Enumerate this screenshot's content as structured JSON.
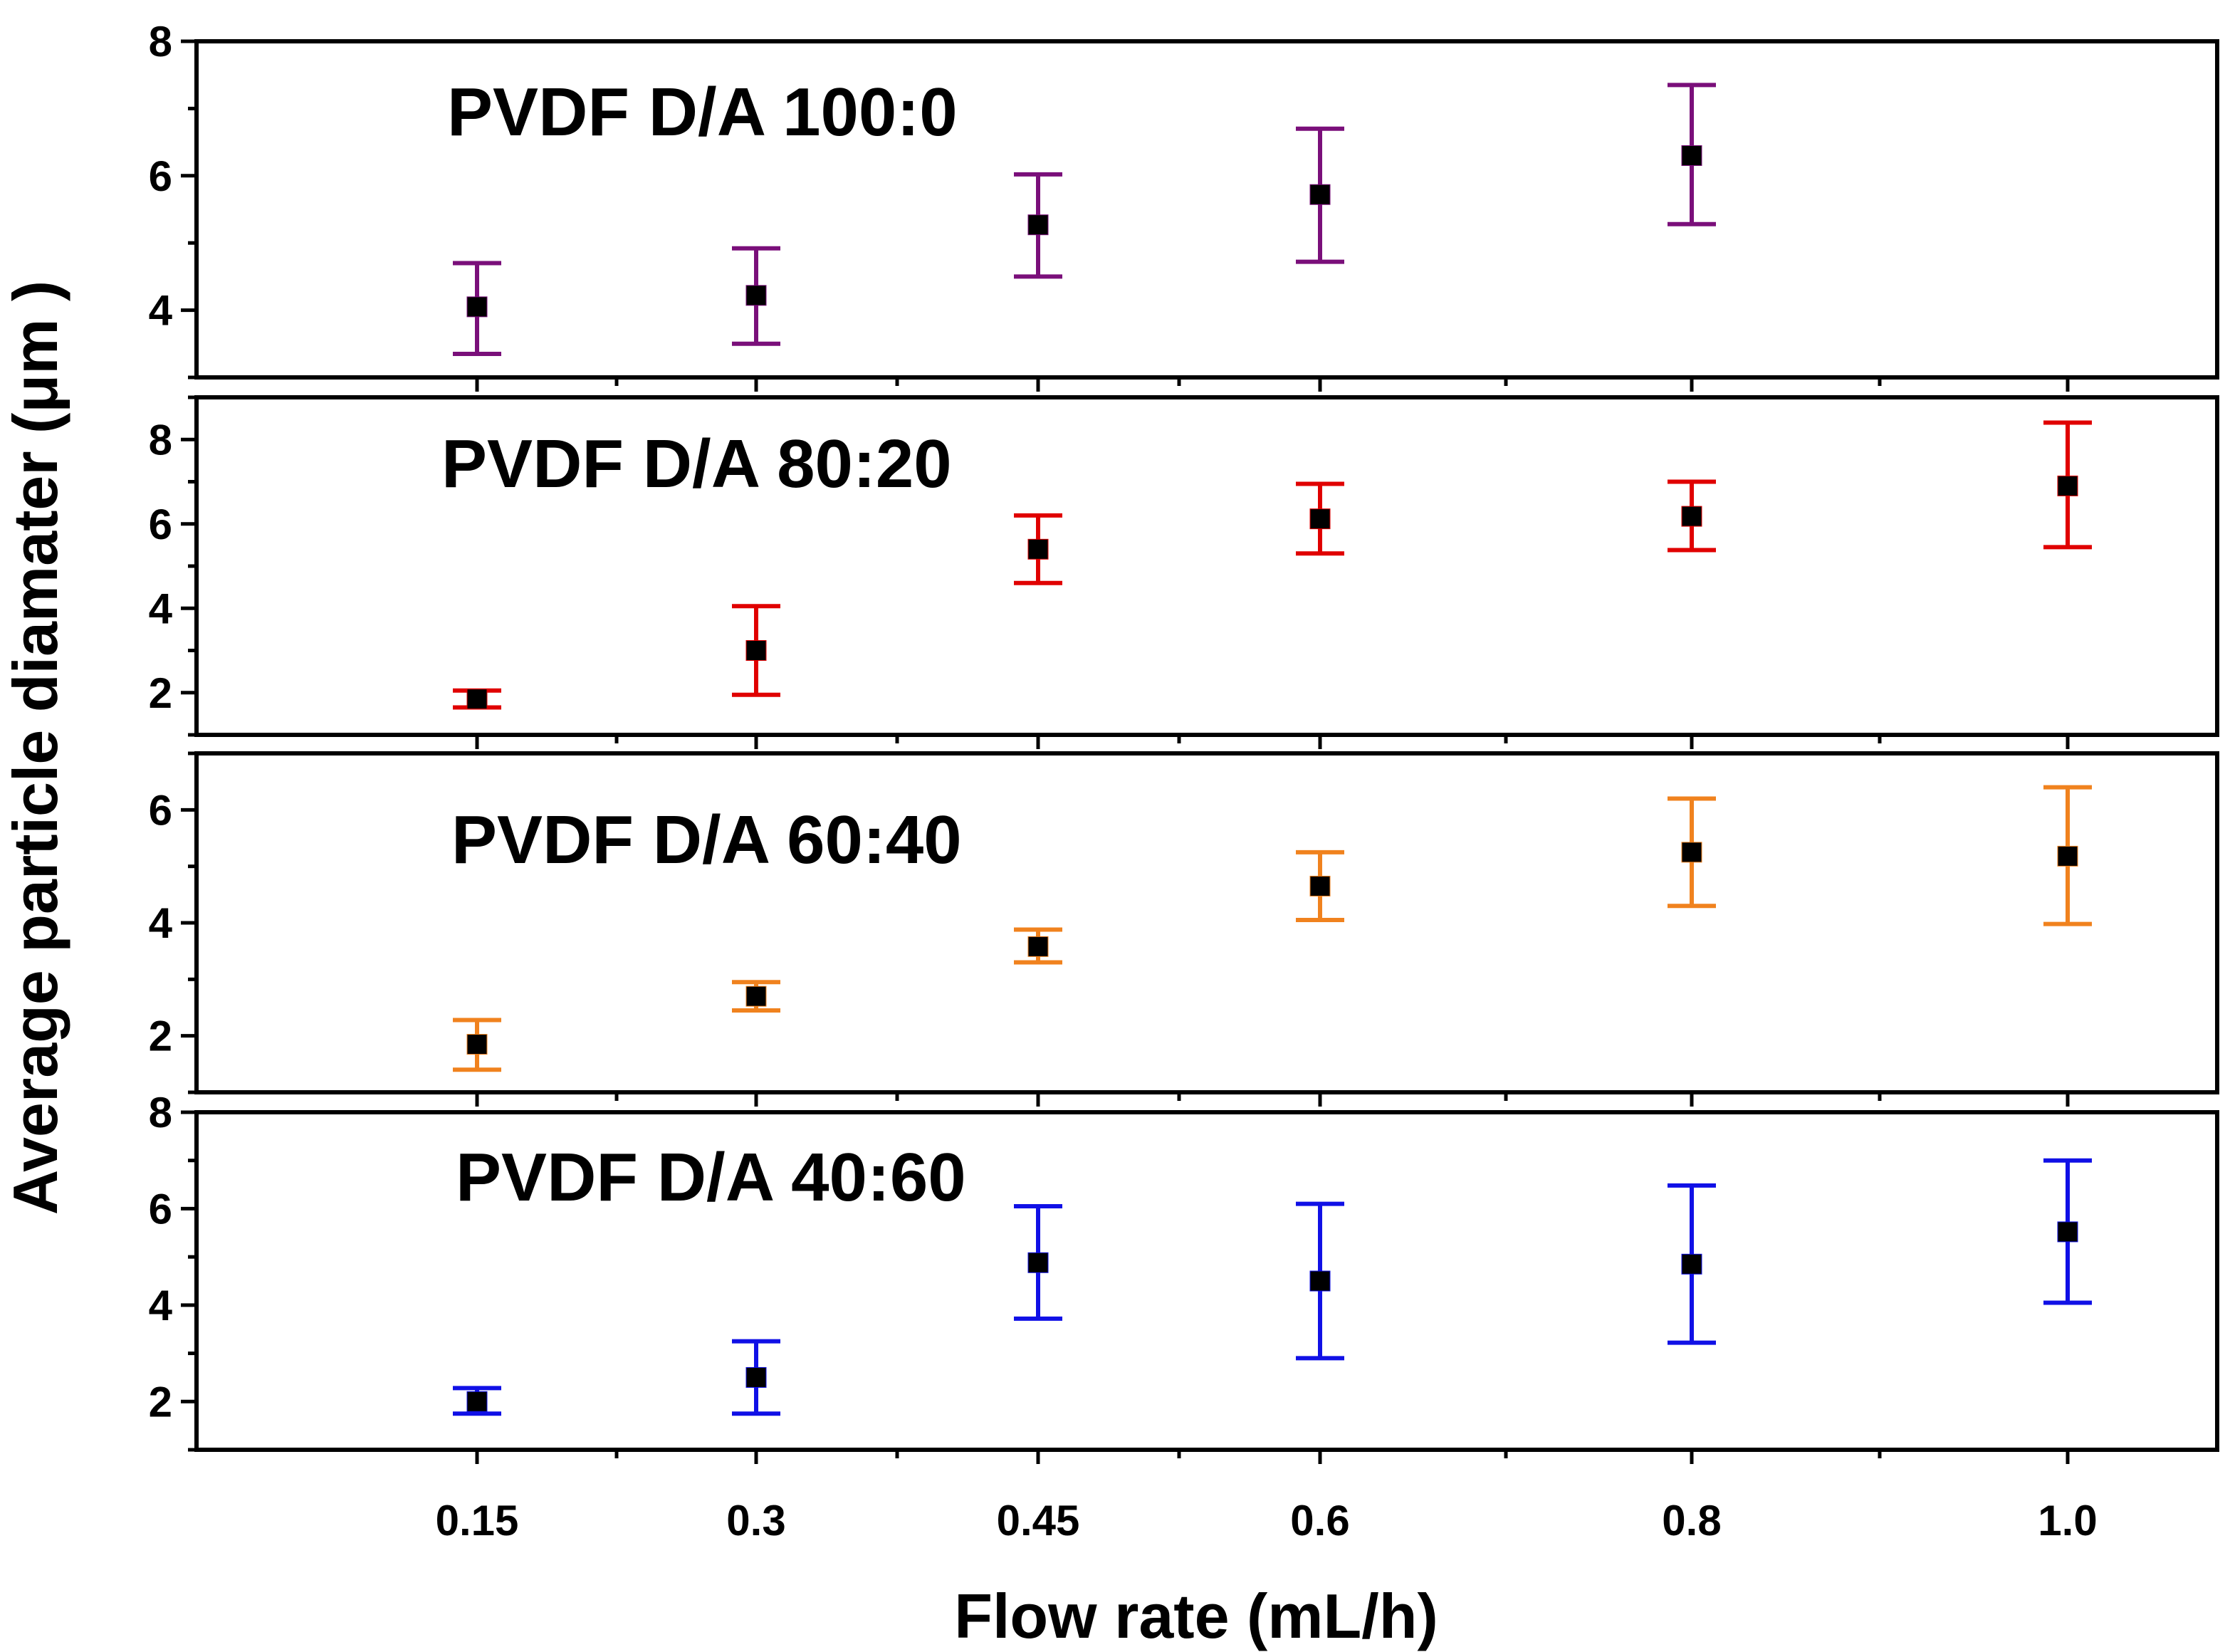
{
  "chart_data": {
    "type": "scatter",
    "xlabel": "Flow rate (mL/h)",
    "ylabel": "Average particle diamater (μm )",
    "x_categories": [
      "0.15",
      "0.3",
      "0.45",
      "0.6",
      "0.8",
      "1.0"
    ],
    "panels": [
      {
        "title": "PVDF D/A 100:0",
        "color": "#7a0f7a",
        "ylim": [
          3.0,
          8.0
        ],
        "yticks": [
          4,
          6,
          8
        ],
        "points": [
          {
            "x": "0.15",
            "y": 4.05,
            "err_low": 3.35,
            "err_high": 4.7
          },
          {
            "x": "0.3",
            "y": 4.22,
            "err_low": 3.5,
            "err_high": 4.92
          },
          {
            "x": "0.45",
            "y": 5.27,
            "err_low": 4.5,
            "err_high": 6.02
          },
          {
            "x": "0.6",
            "y": 5.72,
            "err_low": 4.72,
            "err_high": 6.7
          },
          {
            "x": "0.8",
            "y": 6.3,
            "err_low": 5.28,
            "err_high": 7.35
          }
        ]
      },
      {
        "title": "PVDF D/A 80:20",
        "color": "#e00000",
        "ylim": [
          1.0,
          9.0
        ],
        "yticks": [
          2,
          4,
          6,
          8
        ],
        "points": [
          {
            "x": "0.15",
            "y": 1.85,
            "err_low": 1.65,
            "err_high": 2.05
          },
          {
            "x": "0.3",
            "y": 3.0,
            "err_low": 1.95,
            "err_high": 4.05
          },
          {
            "x": "0.45",
            "y": 5.4,
            "err_low": 4.6,
            "err_high": 6.2
          },
          {
            "x": "0.6",
            "y": 6.12,
            "err_low": 5.3,
            "err_high": 6.95
          },
          {
            "x": "0.8",
            "y": 6.18,
            "err_low": 5.38,
            "err_high": 7.0
          },
          {
            "x": "1.0",
            "y": 6.9,
            "err_low": 5.45,
            "err_high": 8.4
          }
        ]
      },
      {
        "title": "PVDF D/A 60:40",
        "color": "#f0821e",
        "ylim": [
          1.0,
          7.0
        ],
        "yticks": [
          2,
          4,
          6
        ],
        "points": [
          {
            "x": "0.15",
            "y": 1.85,
            "err_low": 1.4,
            "err_high": 2.28
          },
          {
            "x": "0.3",
            "y": 2.7,
            "err_low": 2.45,
            "err_high": 2.95
          },
          {
            "x": "0.45",
            "y": 3.58,
            "err_low": 3.3,
            "err_high": 3.88
          },
          {
            "x": "0.6",
            "y": 4.65,
            "err_low": 4.05,
            "err_high": 5.25
          },
          {
            "x": "0.8",
            "y": 5.25,
            "err_low": 4.3,
            "err_high": 6.2
          },
          {
            "x": "1.0",
            "y": 5.18,
            "err_low": 3.98,
            "err_high": 6.4
          }
        ]
      },
      {
        "title": "PVDF D/A 40:60",
        "color": "#1010e6",
        "ylim": [
          1.0,
          8.0
        ],
        "yticks": [
          2,
          4,
          6,
          8
        ],
        "points": [
          {
            "x": "0.15",
            "y": 2.0,
            "err_low": 1.75,
            "err_high": 2.28
          },
          {
            "x": "0.3",
            "y": 2.5,
            "err_low": 1.75,
            "err_high": 3.25
          },
          {
            "x": "0.45",
            "y": 4.88,
            "err_low": 3.72,
            "err_high": 6.05
          },
          {
            "x": "0.6",
            "y": 4.5,
            "err_low": 2.9,
            "err_high": 6.1
          },
          {
            "x": "0.8",
            "y": 4.85,
            "err_low": 3.22,
            "err_high": 6.48
          },
          {
            "x": "1.0",
            "y": 5.52,
            "err_low": 4.05,
            "err_high": 7.0
          }
        ]
      }
    ]
  }
}
